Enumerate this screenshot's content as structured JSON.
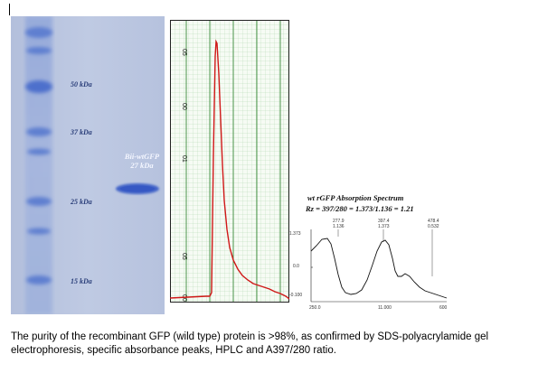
{
  "gel": {
    "marker_labels": [
      {
        "text": "50 kDa",
        "kda": 50
      },
      {
        "text": "37 kDa",
        "kda": 37
      },
      {
        "text": "25 kDa",
        "kda": 25
      },
      {
        "text": "15 kDa",
        "kda": 15
      }
    ],
    "protein_label_line1": "Bii-wtGFP",
    "protein_label_line2": "27 kDa",
    "colors": {
      "background": "#b8c4df",
      "band": "#3f62c8"
    }
  },
  "hplc": {
    "tick_labels": [
      "05",
      "00",
      "01",
      "05",
      "00"
    ],
    "trace_color": "#d01818"
  },
  "spectrum": {
    "title": "wt rGFP Absorption Spectrum",
    "ratio_text": "Rz = 397/280 = 1.373/1.136 = 1.21",
    "peak_labels": [
      {
        "wavelength": "277.9",
        "abs": "1.136"
      },
      {
        "wavelength": "397.4",
        "abs": "1.373"
      },
      {
        "wavelength": "478.4",
        "abs": "0.532"
      }
    ],
    "y_labels": [
      "1.373",
      "0.0",
      "-0.100"
    ],
    "x_labels": [
      "250.0",
      "11.000",
      "600"
    ]
  },
  "caption": "The purity of the recombinant GFP (wild type) protein is >98%, as confirmed by SDS-polyacrylamide gel electrophoresis, specific absorbance peaks, HPLC and A397/280 ratio."
}
